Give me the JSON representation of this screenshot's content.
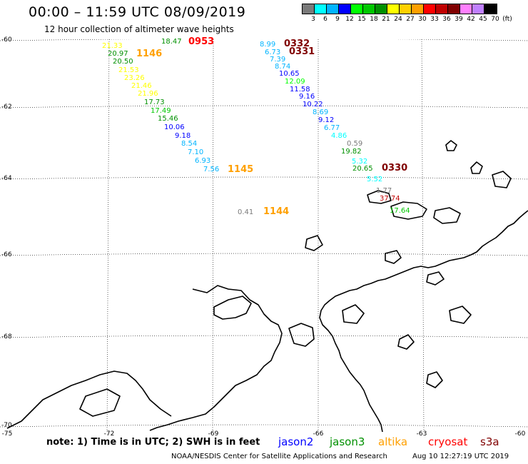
{
  "title": "00:00 – 11:59 UTC 08/09/2019",
  "subtitle": "12 hour collection of altimeter wave heights",
  "scale": {
    "unit": "(ft)",
    "colors": [
      "#7a7a7a",
      "#00ffff",
      "#00b4ff",
      "#0000ff",
      "#00ff00",
      "#00c800",
      "#009000",
      "#ffff00",
      "#ffd000",
      "#ffa000",
      "#ff0000",
      "#c00000",
      "#800000",
      "#ff80ff",
      "#c080ff",
      "#000000"
    ],
    "labels": [
      "3",
      "6",
      "9",
      "12",
      "15",
      "18",
      "21",
      "24",
      "27",
      "30",
      "33",
      "36",
      "39",
      "42",
      "45",
      "70"
    ]
  },
  "map": {
    "lat_labels": [
      "-60",
      "-62",
      "-64",
      "-66",
      "-68",
      "-70"
    ],
    "lon_labels": [
      "-75",
      "-72",
      "-69",
      "-66",
      "-63",
      "-60"
    ],
    "grid_color": "#000000",
    "coast_color": "#000000"
  },
  "observations": [
    {
      "text": "21.33",
      "color": "#ffff00"
    },
    {
      "text": "20.97",
      "color": "#009000"
    },
    {
      "text": "20.50",
      "color": "#009000"
    },
    {
      "text": "21.53",
      "color": "#ffff00"
    },
    {
      "text": "23.26",
      "color": "#ffff00"
    },
    {
      "text": "21.46",
      "color": "#ffff00"
    },
    {
      "text": "21.96",
      "color": "#ffff00"
    },
    {
      "text": "17.73",
      "color": "#009000"
    },
    {
      "text": "17.49",
      "color": "#00c800"
    },
    {
      "text": "15.46",
      "color": "#009000"
    },
    {
      "text": "10.06",
      "color": "#0000ff"
    },
    {
      "text": "9.18",
      "color": "#0000ff"
    },
    {
      "text": "8.54",
      "color": "#00b4ff"
    },
    {
      "text": "7.10",
      "color": "#00b4ff"
    },
    {
      "text": "6.93",
      "color": "#00b4ff"
    },
    {
      "text": "7.56",
      "color": "#00b4ff"
    },
    {
      "text": "18.47",
      "color": "#009000"
    },
    {
      "text": "0.41",
      "color": "#7a7a7a"
    },
    {
      "text": "8.99",
      "color": "#00b4ff"
    },
    {
      "text": "6.73",
      "color": "#00b4ff"
    },
    {
      "text": "7.39",
      "color": "#00b4ff"
    },
    {
      "text": "8.74",
      "color": "#00b4ff"
    },
    {
      "text": "10.65",
      "color": "#0000ff"
    },
    {
      "text": "12.09",
      "color": "#00ff00"
    },
    {
      "text": "11.58",
      "color": "#0000ff"
    },
    {
      "text": "9.16",
      "color": "#0000ff"
    },
    {
      "text": "10.22",
      "color": "#0000ff"
    },
    {
      "text": "8.69",
      "color": "#00b4ff"
    },
    {
      "text": "9.12",
      "color": "#0000ff"
    },
    {
      "text": "6.77",
      "color": "#00b4ff"
    },
    {
      "text": "4.86",
      "color": "#00ffff"
    },
    {
      "text": "0.59",
      "color": "#7a7a7a"
    },
    {
      "text": "19.82",
      "color": "#009000"
    },
    {
      "text": "5.32",
      "color": "#00ffff"
    },
    {
      "text": "20.65",
      "color": "#009000"
    },
    {
      "text": "5.52",
      "color": "#00ffff"
    },
    {
      "text": "1.77",
      "color": "#7a7a7a"
    },
    {
      "text": "37.74",
      "color": "#c00000"
    },
    {
      "text": "17.64",
      "color": "#00c800"
    }
  ],
  "times": [
    {
      "text": "0953",
      "color": "#ff0000"
    },
    {
      "text": "1146",
      "color": "#ffa000"
    },
    {
      "text": "1145",
      "color": "#ffa000"
    },
    {
      "text": "1144",
      "color": "#ffa000"
    },
    {
      "text": "0332",
      "color": "#800000"
    },
    {
      "text": "0331",
      "color": "#800000"
    },
    {
      "text": "0330",
      "color": "#800000"
    }
  ],
  "note": "note: 1) Time is in UTC; 2) SWH is in feet",
  "legend": [
    {
      "text": "jason2",
      "color": "#0000ff"
    },
    {
      "text": "jason3",
      "color": "#009000"
    },
    {
      "text": "altika",
      "color": "#ffa000"
    },
    {
      "text": "cryosat",
      "color": "#ff0000"
    },
    {
      "text": "s3a",
      "color": "#800000"
    }
  ],
  "credit": "NOAA/NESDIS Center for Satellite Applications and Research",
  "updated": "Aug 10 12:27:19 UTC 2019"
}
